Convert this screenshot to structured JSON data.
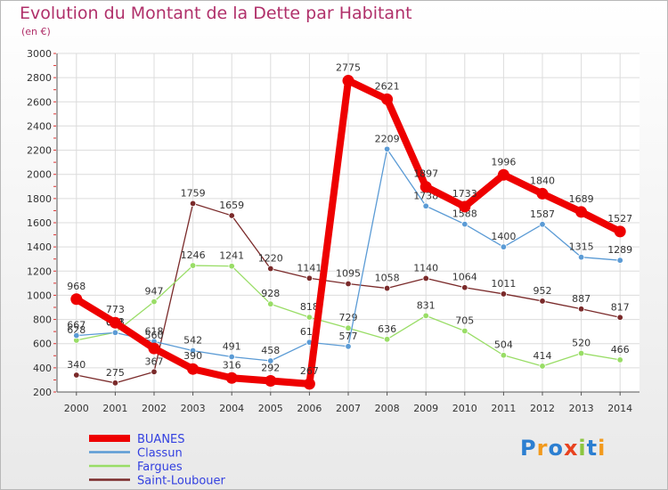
{
  "title": "Evolution du Montant de la Dette par Habitant",
  "subtitle": "(en €)",
  "logo": "Proxiti",
  "chart_data": {
    "type": "line",
    "title": "Evolution du Montant de la Dette par Habitant",
    "subtitle": "(en €)",
    "x": [
      "2000",
      "2001",
      "2002",
      "2003",
      "2004",
      "2005",
      "2006",
      "2007",
      "2008",
      "2009",
      "2010",
      "2011",
      "2012",
      "2013",
      "2014"
    ],
    "ylim": [
      200,
      3000
    ],
    "yticks": [
      200,
      400,
      600,
      800,
      1000,
      1200,
      1400,
      1600,
      1800,
      2000,
      2200,
      2400,
      2600,
      2800,
      3000
    ],
    "grid": true,
    "legend_position": "bottom-left",
    "series": [
      {
        "name": "BUANES",
        "color": "#ee0000",
        "values": [
          968,
          773,
          560,
          390,
          316,
          292,
          267,
          2775,
          2621,
          1897,
          1733,
          1996,
          1840,
          1689,
          1527
        ]
      },
      {
        "name": "Classun",
        "color": "#5b9bd5",
        "values": [
          667,
          691,
          618,
          542,
          491,
          458,
          611,
          577,
          2209,
          1738,
          1588,
          1400,
          1587,
          1315,
          1289
        ]
      },
      {
        "name": "Fargues",
        "color": "#99dd66",
        "values": [
          628,
          693,
          947,
          1246,
          1241,
          928,
          818,
          729,
          636,
          831,
          705,
          504,
          414,
          520,
          466
        ]
      },
      {
        "name": "Saint-Loubouer",
        "color": "#7a2a2a",
        "values": [
          340,
          275,
          367,
          1759,
          1659,
          1220,
          1141,
          1095,
          1058,
          1140,
          1064,
          1011,
          952,
          887,
          817
        ]
      }
    ]
  }
}
